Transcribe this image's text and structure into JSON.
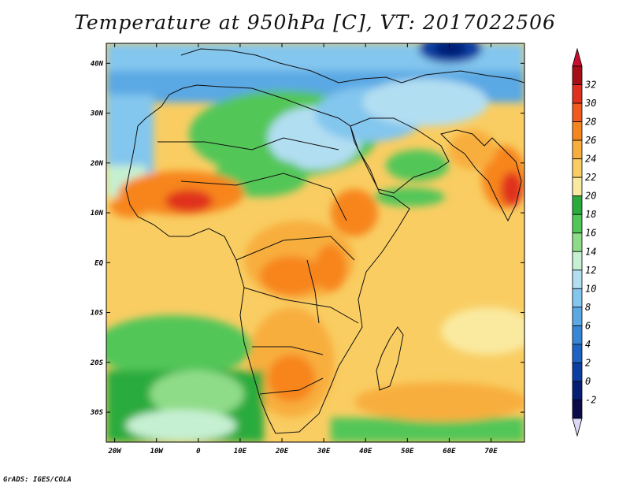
{
  "title": "Temperature at 950hPa [C], VT: 2017022506",
  "credit": "GrADS: IGES/COLA",
  "map": {
    "lat_labels": [
      "40N",
      "30N",
      "20N",
      "10N",
      "EQ",
      "10S",
      "20S",
      "30S"
    ],
    "lon_labels": [
      "20W",
      "10W",
      "0",
      "10E",
      "20E",
      "30E",
      "40E",
      "50E",
      "60E",
      "70E"
    ],
    "lat_range": [
      -36,
      44
    ],
    "lon_range": [
      -22,
      78
    ]
  },
  "colorbar": {
    "labels": [
      "32",
      "30",
      "28",
      "26",
      "24",
      "22",
      "20",
      "18",
      "16",
      "14",
      "12",
      "10",
      "8",
      "6",
      "4",
      "2",
      "0",
      "-2"
    ],
    "colors": [
      "#a50f15",
      "#e0301e",
      "#f05a1c",
      "#f7851e",
      "#f8ae3c",
      "#f9cd62",
      "#faeaa0",
      "#2bab3c",
      "#53c658",
      "#8fdc88",
      "#c6f0d2",
      "#b2def2",
      "#83c6ee",
      "#5aa8e4",
      "#3686d8",
      "#1c63c4",
      "#0b3fa2",
      "#051f74",
      "#0b0b4a"
    ],
    "top_arrow": "#c8102e",
    "bottom_arrow": "#dcd8f5"
  }
}
